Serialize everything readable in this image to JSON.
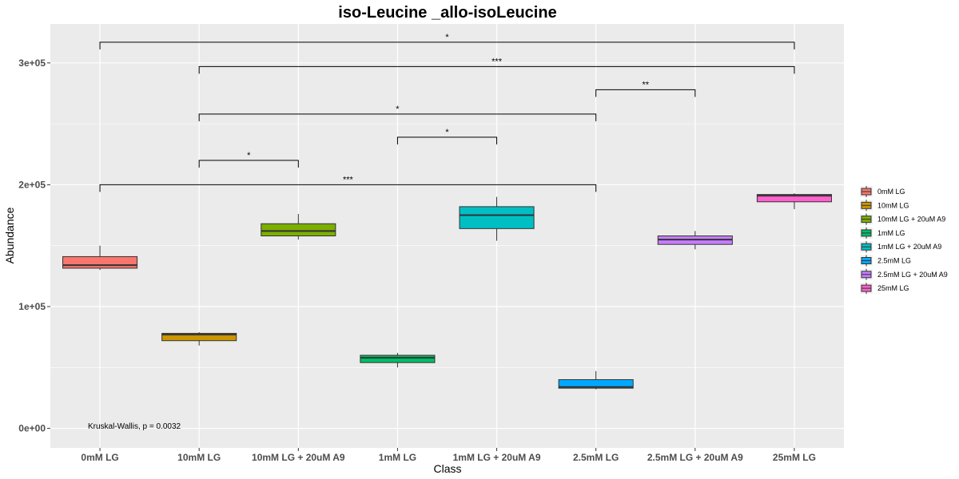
{
  "chart_data": {
    "type": "box",
    "title": "iso-Leucine _allo-isoLeucine",
    "xlabel": "Class",
    "ylabel": "Abundance",
    "ylim": [
      -16000,
      332000
    ],
    "yticks": [
      0,
      100000,
      200000,
      300000
    ],
    "ytick_labels": [
      "0e+00",
      "1e+05",
      "2e+05",
      "3e+05"
    ],
    "grid": true,
    "legend_position": "right",
    "categories": [
      "0mM LG",
      "10mM LG",
      "10mM LG + 20uM A9",
      "1mM LG",
      "1mM LG + 20uM A9",
      "2.5mM LG",
      "2.5mM LG + 20uM A9",
      "25mM LG"
    ],
    "colors": [
      "#F8766D",
      "#CD9600",
      "#7CAE00",
      "#00BE67",
      "#00BFC4",
      "#00A9FF",
      "#C77CFF",
      "#FF61CC"
    ],
    "boxes": [
      {
        "min": 130000,
        "q1": 131500,
        "median": 134000,
        "q3": 141000,
        "max": 150000
      },
      {
        "min": 68000,
        "q1": 72000,
        "median": 77000,
        "q3": 78000,
        "max": 79000
      },
      {
        "min": 155000,
        "q1": 158000,
        "median": 162000,
        "q3": 168000,
        "max": 176000
      },
      {
        "min": 50000,
        "q1": 54000,
        "median": 58000,
        "q3": 60000,
        "max": 62000
      },
      {
        "min": 154000,
        "q1": 164000,
        "median": 175000,
        "q3": 182000,
        "max": 190000
      },
      {
        "min": 32000,
        "q1": 33000,
        "median": 34000,
        "q3": 40000,
        "max": 47000
      },
      {
        "min": 147000,
        "q1": 151000,
        "median": 155000,
        "q3": 158000,
        "max": 162000
      },
      {
        "min": 180000,
        "q1": 186000,
        "median": 191000,
        "q3": 192000,
        "max": 193000
      }
    ],
    "annotation": "Kruskal-Wallis, p = 0.0032",
    "comparisons": [
      {
        "from": 0,
        "to": 7,
        "y": 317000,
        "label": "*"
      },
      {
        "from": 1,
        "to": 7,
        "y": 297000,
        "label": "***"
      },
      {
        "from": 5,
        "to": 6,
        "y": 278000,
        "label": "**"
      },
      {
        "from": 1,
        "to": 5,
        "y": 258000,
        "label": "*"
      },
      {
        "from": 3,
        "to": 4,
        "y": 239000,
        "label": "*"
      },
      {
        "from": 1,
        "to": 2,
        "y": 220000,
        "label": "*"
      },
      {
        "from": 0,
        "to": 5,
        "y": 200000,
        "label": "***"
      }
    ]
  }
}
